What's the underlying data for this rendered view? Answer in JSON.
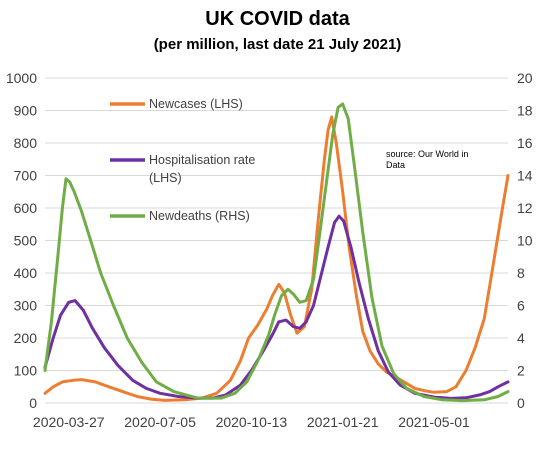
{
  "chart_data": {
    "type": "line",
    "title": "UK COVID data",
    "subtitle": "(per million, last date 21  July 2021)",
    "source_note": [
      "source:  Our World in",
      "Data"
    ],
    "x_tick_labels": [
      "2020-03-27",
      "2020-07-05",
      "2020-10-13",
      "2021-01-21",
      "2021-05-01"
    ],
    "x_range": [
      "2020-03-01",
      "2021-07-21"
    ],
    "y_left": {
      "range": [
        0,
        1000
      ],
      "ticks": [
        0,
        100,
        200,
        300,
        400,
        500,
        600,
        700,
        800,
        900,
        1000
      ]
    },
    "y_right": {
      "range": [
        0,
        20
      ],
      "ticks": [
        0,
        2,
        4,
        6,
        8,
        10,
        12,
        14,
        16,
        18,
        20
      ]
    },
    "grid": "horizontal",
    "legend_position": "top-left",
    "series": [
      {
        "name": "Newcases (LHS)",
        "axis": "left",
        "color": "#ED7D31",
        "points": [
          [
            "2020-03-01",
            30
          ],
          [
            "2020-03-10",
            50
          ],
          [
            "2020-03-20",
            65
          ],
          [
            "2020-04-01",
            70
          ],
          [
            "2020-04-10",
            72
          ],
          [
            "2020-04-25",
            65
          ],
          [
            "2020-05-10",
            50
          ],
          [
            "2020-05-25",
            35
          ],
          [
            "2020-06-10",
            20
          ],
          [
            "2020-06-25",
            12
          ],
          [
            "2020-07-10",
            8
          ],
          [
            "2020-08-01",
            10
          ],
          [
            "2020-08-20",
            15
          ],
          [
            "2020-09-05",
            30
          ],
          [
            "2020-09-20",
            70
          ],
          [
            "2020-10-01",
            130
          ],
          [
            "2020-10-10",
            200
          ],
          [
            "2020-10-20",
            240
          ],
          [
            "2020-10-30",
            290
          ],
          [
            "2020-11-05",
            330
          ],
          [
            "2020-11-12",
            365
          ],
          [
            "2020-11-18",
            340
          ],
          [
            "2020-11-25",
            270
          ],
          [
            "2020-12-02",
            215
          ],
          [
            "2020-12-10",
            235
          ],
          [
            "2020-12-18",
            350
          ],
          [
            "2020-12-25",
            560
          ],
          [
            "2021-01-01",
            750
          ],
          [
            "2021-01-05",
            840
          ],
          [
            "2021-01-09",
            880
          ],
          [
            "2021-01-14",
            800
          ],
          [
            "2021-01-21",
            650
          ],
          [
            "2021-01-28",
            480
          ],
          [
            "2021-02-05",
            330
          ],
          [
            "2021-02-12",
            220
          ],
          [
            "2021-02-20",
            160
          ],
          [
            "2021-03-01",
            120
          ],
          [
            "2021-03-10",
            95
          ],
          [
            "2021-03-20",
            80
          ],
          [
            "2021-04-01",
            60
          ],
          [
            "2021-04-10",
            45
          ],
          [
            "2021-04-20",
            38
          ],
          [
            "2021-05-01",
            33
          ],
          [
            "2021-05-15",
            35
          ],
          [
            "2021-05-25",
            50
          ],
          [
            "2021-06-05",
            100
          ],
          [
            "2021-06-15",
            170
          ],
          [
            "2021-06-25",
            260
          ],
          [
            "2021-07-01",
            360
          ],
          [
            "2021-07-08",
            480
          ],
          [
            "2021-07-15",
            600
          ],
          [
            "2021-07-21",
            700
          ]
        ]
      },
      {
        "name": "Hospitalisation rate (LHS)",
        "axis": "left",
        "color": "#7030A0",
        "points": [
          [
            "2020-03-01",
            110
          ],
          [
            "2020-03-10",
            200
          ],
          [
            "2020-03-18",
            270
          ],
          [
            "2020-03-27",
            310
          ],
          [
            "2020-04-03",
            315
          ],
          [
            "2020-04-12",
            285
          ],
          [
            "2020-04-22",
            230
          ],
          [
            "2020-05-05",
            170
          ],
          [
            "2020-05-20",
            115
          ],
          [
            "2020-06-05",
            70
          ],
          [
            "2020-06-20",
            45
          ],
          [
            "2020-07-05",
            30
          ],
          [
            "2020-07-25",
            20
          ],
          [
            "2020-08-15",
            15
          ],
          [
            "2020-09-01",
            15
          ],
          [
            "2020-09-15",
            25
          ],
          [
            "2020-10-01",
            55
          ],
          [
            "2020-10-13",
            100
          ],
          [
            "2020-10-25",
            155
          ],
          [
            "2020-11-05",
            210
          ],
          [
            "2020-11-12",
            250
          ],
          [
            "2020-11-20",
            255
          ],
          [
            "2020-11-28",
            235
          ],
          [
            "2020-12-05",
            230
          ],
          [
            "2020-12-12",
            250
          ],
          [
            "2020-12-20",
            300
          ],
          [
            "2020-12-28",
            390
          ],
          [
            "2021-01-05",
            480
          ],
          [
            "2021-01-12",
            555
          ],
          [
            "2021-01-17",
            575
          ],
          [
            "2021-01-22",
            560
          ],
          [
            "2021-01-30",
            480
          ],
          [
            "2021-02-08",
            370
          ],
          [
            "2021-02-18",
            260
          ],
          [
            "2021-03-01",
            160
          ],
          [
            "2021-03-12",
            95
          ],
          [
            "2021-03-25",
            55
          ],
          [
            "2021-04-10",
            30
          ],
          [
            "2021-05-01",
            18
          ],
          [
            "2021-05-20",
            14
          ],
          [
            "2021-06-05",
            16
          ],
          [
            "2021-06-20",
            25
          ],
          [
            "2021-07-01",
            35
          ],
          [
            "2021-07-10",
            50
          ],
          [
            "2021-07-21",
            65
          ]
        ]
      },
      {
        "name": "Newdeaths (RHS)",
        "axis": "right",
        "color": "#70AD47",
        "points": [
          [
            "2020-03-01",
            2
          ],
          [
            "2020-03-08",
            5
          ],
          [
            "2020-03-15",
            9
          ],
          [
            "2020-03-20",
            12
          ],
          [
            "2020-03-24",
            13.8
          ],
          [
            "2020-03-28",
            13.6
          ],
          [
            "2020-04-02",
            13
          ],
          [
            "2020-04-10",
            11.8
          ],
          [
            "2020-04-20",
            10
          ],
          [
            "2020-05-01",
            8
          ],
          [
            "2020-05-15",
            6
          ],
          [
            "2020-05-30",
            4
          ],
          [
            "2020-06-15",
            2.5
          ],
          [
            "2020-07-01",
            1.3
          ],
          [
            "2020-07-20",
            0.7
          ],
          [
            "2020-08-15",
            0.3
          ],
          [
            "2020-09-10",
            0.3
          ],
          [
            "2020-09-25",
            0.6
          ],
          [
            "2020-10-08",
            1.3
          ],
          [
            "2020-10-20",
            2.6
          ],
          [
            "2020-11-01",
            4.2
          ],
          [
            "2020-11-08",
            5.5
          ],
          [
            "2020-11-15",
            6.6
          ],
          [
            "2020-11-22",
            7
          ],
          [
            "2020-11-28",
            6.7
          ],
          [
            "2020-12-05",
            6.2
          ],
          [
            "2020-12-12",
            6.3
          ],
          [
            "2020-12-20",
            7.6
          ],
          [
            "2020-12-27",
            10.5
          ],
          [
            "2021-01-03",
            13.5
          ],
          [
            "2021-01-10",
            16.5
          ],
          [
            "2021-01-16",
            18.2
          ],
          [
            "2021-01-21",
            18.4
          ],
          [
            "2021-01-27",
            17.5
          ],
          [
            "2021-02-03",
            14.5
          ],
          [
            "2021-02-12",
            10.5
          ],
          [
            "2021-02-22",
            6.5
          ],
          [
            "2021-03-05",
            3.5
          ],
          [
            "2021-03-18",
            1.8
          ],
          [
            "2021-04-01",
            0.9
          ],
          [
            "2021-04-20",
            0.4
          ],
          [
            "2021-05-10",
            0.2
          ],
          [
            "2021-06-01",
            0.15
          ],
          [
            "2021-06-25",
            0.2
          ],
          [
            "2021-07-10",
            0.4
          ],
          [
            "2021-07-21",
            0.7
          ]
        ]
      }
    ]
  }
}
